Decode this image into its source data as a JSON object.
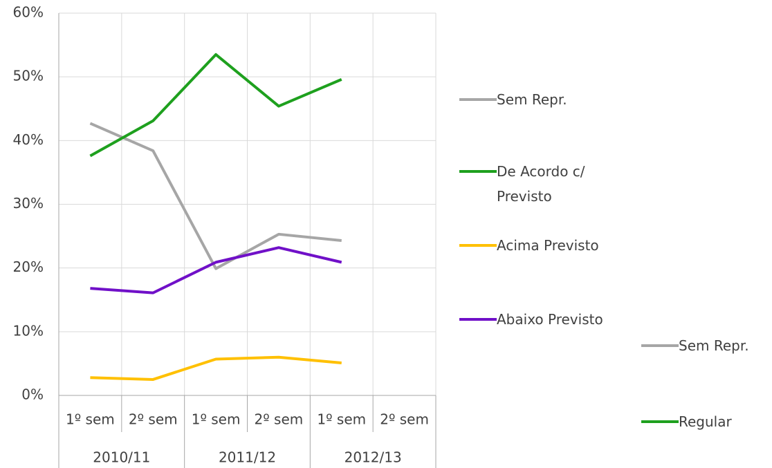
{
  "chart_data": {
    "type": "line",
    "categories": [
      "1º sem",
      "2º sem",
      "1º sem",
      "2º sem",
      "1º sem",
      "2º sem"
    ],
    "category_groups": [
      "2010/11",
      "2011/12",
      "2012/13"
    ],
    "series": [
      {
        "name": "Sem Repr.",
        "color": "#a6a6a6",
        "values": [
          42.7,
          38.4,
          19.9,
          25.3,
          24.3,
          null
        ]
      },
      {
        "name": "De Acordo c/ Previsto",
        "color": "#1ea01e",
        "values": [
          37.6,
          43.1,
          53.5,
          45.4,
          49.6,
          null
        ]
      },
      {
        "name": "Acima Previsto",
        "color": "#ffc000",
        "values": [
          2.8,
          2.5,
          5.7,
          6.0,
          5.1,
          null
        ]
      },
      {
        "name": "Abaixo Previsto",
        "color": "#7010c8",
        "values": [
          16.8,
          16.1,
          20.9,
          23.2,
          20.9,
          null
        ]
      },
      {
        "name": "Sem Repr.",
        "color": "#a6a6a6",
        "values": [
          null,
          null,
          null,
          null,
          null,
          null
        ]
      },
      {
        "name": "Regular",
        "color": "#1ea01e",
        "values": [
          null,
          null,
          null,
          null,
          null,
          null
        ]
      }
    ],
    "ylim": [
      0,
      60
    ],
    "yticks": [
      {
        "value": 0,
        "label": "0%"
      },
      {
        "value": 10,
        "label": "10%"
      },
      {
        "value": 20,
        "label": "20%"
      },
      {
        "value": 30,
        "label": "30%"
      },
      {
        "value": 40,
        "label": "40%"
      },
      {
        "value": 50,
        "label": "50%"
      },
      {
        "value": 60,
        "label": "60%"
      }
    ],
    "grid": true
  }
}
